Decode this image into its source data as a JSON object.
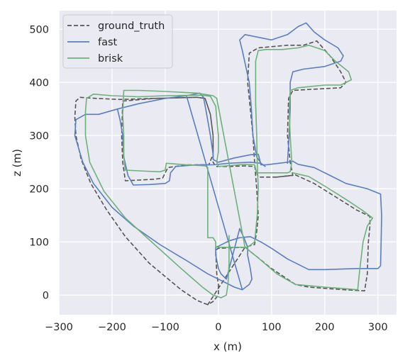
{
  "chart_data": {
    "type": "line",
    "xlabel": "x (m)",
    "ylabel": "z (m)",
    "xlim": [
      -300,
      335
    ],
    "ylim": [
      -37,
      535
    ],
    "xticks": [
      -300,
      -200,
      -100,
      0,
      100,
      200,
      300
    ],
    "yticks": [
      0,
      100,
      200,
      300,
      400,
      500
    ],
    "xtick_labels": [
      "−300",
      "−200",
      "−100",
      "0",
      "100",
      "200",
      "300"
    ],
    "ytick_labels": [
      "0",
      "100",
      "200",
      "300",
      "400",
      "500"
    ],
    "grid": true,
    "legend_position": "top-left",
    "background": "#eaeaf2",
    "series": [
      {
        "name": "ground_truth",
        "color": "#555555",
        "style": "dashed",
        "points": [
          [
            -20,
            -18
          ],
          [
            -40,
            -10
          ],
          [
            -70,
            10
          ],
          [
            -130,
            60
          ],
          [
            -175,
            110
          ],
          [
            -210,
            160
          ],
          [
            -240,
            210
          ],
          [
            -258,
            255
          ],
          [
            -268,
            300
          ],
          [
            -270,
            335
          ],
          [
            -268,
            365
          ],
          [
            -260,
            372
          ],
          [
            -230,
            370
          ],
          [
            -185,
            368
          ],
          [
            -120,
            370
          ],
          [
            -40,
            372
          ],
          [
            -25,
            370
          ],
          [
            -15,
            340
          ],
          [
            -10,
            300
          ],
          [
            -10,
            265
          ],
          [
            -18,
            245
          ],
          [
            -60,
            245
          ],
          [
            -95,
            240
          ],
          [
            -105,
            220
          ],
          [
            -120,
            218
          ],
          [
            -175,
            215
          ],
          [
            -180,
            250
          ],
          [
            -182,
            300
          ],
          [
            -180,
            365
          ],
          [
            -180,
            365
          ],
          [
            -120,
            370
          ],
          [
            -40,
            372
          ],
          [
            -25,
            370
          ],
          [
            -15,
            340
          ],
          [
            -10,
            300
          ],
          [
            -10,
            250
          ],
          [
            -5,
            242
          ],
          [
            20,
            242
          ],
          [
            50,
            243
          ],
          [
            68,
            242
          ],
          [
            75,
            222
          ],
          [
            110,
            222
          ],
          [
            140,
            225
          ],
          [
            135,
            250
          ],
          [
            130,
            300
          ],
          [
            132,
            370
          ],
          [
            140,
            385
          ],
          [
            175,
            387
          ],
          [
            230,
            390
          ],
          [
            240,
            400
          ],
          [
            230,
            420
          ],
          [
            210,
            450
          ],
          [
            185,
            478
          ],
          [
            160,
            470
          ],
          [
            130,
            470
          ],
          [
            75,
            465
          ],
          [
            58,
            455
          ],
          [
            55,
            400
          ],
          [
            60,
            350
          ],
          [
            65,
            300
          ],
          [
            68,
            250
          ],
          [
            72,
            200
          ],
          [
            75,
            150
          ],
          [
            72,
            120
          ],
          [
            68,
            95
          ],
          [
            50,
            90
          ],
          [
            0,
            88
          ],
          [
            -5,
            85
          ],
          [
            -3,
            40
          ],
          [
            0,
            20
          ],
          [
            0,
            0
          ],
          [
            -10,
            -12
          ],
          [
            -20,
            -18
          ],
          [
            50,
            90
          ],
          [
            100,
            50
          ],
          [
            145,
            20
          ],
          [
            170,
            15
          ],
          [
            210,
            12
          ],
          [
            240,
            10
          ],
          [
            275,
            8
          ],
          [
            280,
            40
          ],
          [
            282,
            100
          ],
          [
            285,
            130
          ],
          [
            285,
            148
          ],
          [
            260,
            160
          ],
          [
            220,
            185
          ],
          [
            180,
            210
          ],
          [
            145,
            226
          ],
          [
            110,
            222
          ]
        ]
      },
      {
        "name": "fast",
        "color": "#5b7ec0",
        "style": "solid",
        "points": [
          [
            45,
            10
          ],
          [
            30,
            15
          ],
          [
            10,
            25
          ],
          [
            -20,
            40
          ],
          [
            -60,
            65
          ],
          [
            -110,
            95
          ],
          [
            -160,
            130
          ],
          [
            -200,
            165
          ],
          [
            -235,
            210
          ],
          [
            -255,
            250
          ],
          [
            -270,
            300
          ],
          [
            -268,
            330
          ],
          [
            -250,
            340
          ],
          [
            -225,
            340
          ],
          [
            -190,
            350
          ],
          [
            -150,
            360
          ],
          [
            -100,
            370
          ],
          [
            -60,
            375
          ],
          [
            -35,
            380
          ],
          [
            -28,
            372
          ],
          [
            -22,
            340
          ],
          [
            -15,
            300
          ],
          [
            -10,
            265
          ],
          [
            -10,
            255
          ],
          [
            0,
            250
          ],
          [
            30,
            258
          ],
          [
            60,
            264
          ],
          [
            75,
            265
          ],
          [
            80,
            245
          ],
          [
            90,
            245
          ],
          [
            130,
            250
          ],
          [
            140,
            252
          ],
          [
            150,
            246
          ],
          [
            180,
            240
          ],
          [
            210,
            225
          ],
          [
            240,
            210
          ],
          [
            280,
            200
          ],
          [
            305,
            190
          ],
          [
            307,
            150
          ],
          [
            306,
            100
          ],
          [
            305,
            55
          ],
          [
            300,
            50
          ],
          [
            260,
            50
          ],
          [
            200,
            48
          ],
          [
            170,
            48
          ],
          [
            130,
            68
          ],
          [
            100,
            88
          ],
          [
            80,
            100
          ],
          [
            60,
            110
          ],
          [
            40,
            108
          ],
          [
            20,
            102
          ],
          [
            0,
            92
          ],
          [
            -5,
            90
          ],
          [
            -5,
            75
          ],
          [
            0,
            50
          ],
          [
            5,
            40
          ],
          [
            15,
            30
          ],
          [
            40,
            125
          ],
          [
            48,
            108
          ],
          [
            55,
            90
          ],
          [
            55,
            75
          ],
          [
            60,
            50
          ],
          [
            63,
            30
          ],
          [
            58,
            20
          ],
          [
            45,
            10
          ],
          [
            -60,
            375
          ],
          [
            -100,
            370
          ],
          [
            -150,
            360
          ],
          [
            -190,
            350
          ],
          [
            -185,
            330
          ],
          [
            -180,
            300
          ],
          [
            -178,
            260
          ],
          [
            -170,
            225
          ],
          [
            -160,
            207
          ],
          [
            -130,
            208
          ],
          [
            -100,
            210
          ],
          [
            -92,
            215
          ],
          [
            -90,
            230
          ],
          [
            -80,
            242
          ],
          [
            -40,
            245
          ],
          [
            -20,
            245
          ],
          [
            -10,
            245
          ],
          [
            20,
            248
          ],
          [
            60,
            250
          ],
          [
            80,
            248
          ],
          [
            88,
            242
          ],
          [
            80,
            248
          ],
          [
            72,
            260
          ],
          [
            65,
            300
          ],
          [
            62,
            350
          ],
          [
            58,
            400
          ],
          [
            45,
            460
          ],
          [
            40,
            480
          ],
          [
            50,
            490
          ],
          [
            100,
            480
          ],
          [
            130,
            490
          ],
          [
            150,
            505
          ],
          [
            165,
            512
          ],
          [
            180,
            495
          ],
          [
            200,
            480
          ],
          [
            225,
            465
          ],
          [
            235,
            450
          ],
          [
            230,
            440
          ],
          [
            200,
            430
          ],
          [
            160,
            425
          ],
          [
            140,
            420
          ],
          [
            135,
            400
          ],
          [
            135,
            350
          ],
          [
            133,
            300
          ],
          [
            130,
            250
          ],
          [
            130,
            248
          ]
        ]
      },
      {
        "name": "brisk",
        "color": "#6fb07c",
        "style": "solid",
        "points": [
          [
            20,
            112
          ],
          [
            20,
            60
          ],
          [
            18,
            20
          ],
          [
            15,
            0
          ],
          [
            5,
            -5
          ],
          [
            -10,
            0
          ],
          [
            -30,
            15
          ],
          [
            -70,
            50
          ],
          [
            -120,
            95
          ],
          [
            -175,
            145
          ],
          [
            -215,
            195
          ],
          [
            -242,
            250
          ],
          [
            -250,
            300
          ],
          [
            -250,
            345
          ],
          [
            -248,
            370
          ],
          [
            -235,
            378
          ],
          [
            -200,
            375
          ],
          [
            -150,
            373
          ],
          [
            -100,
            375
          ],
          [
            -30,
            376
          ],
          [
            -15,
            374
          ],
          [
            -5,
            355
          ],
          [
            -2,
            320
          ],
          [
            0,
            300
          ],
          [
            0,
            270
          ],
          [
            -3,
            250
          ],
          [
            0,
            242
          ],
          [
            15,
            243
          ],
          [
            50,
            246
          ],
          [
            68,
            245
          ],
          [
            72,
            230
          ],
          [
            100,
            230
          ],
          [
            130,
            230
          ],
          [
            135,
            232
          ],
          [
            138,
            250
          ],
          [
            135,
            300
          ],
          [
            133,
            350
          ],
          [
            135,
            385
          ],
          [
            150,
            390
          ],
          [
            200,
            395
          ],
          [
            230,
            395
          ],
          [
            250,
            405
          ],
          [
            245,
            420
          ],
          [
            220,
            440
          ],
          [
            200,
            460
          ],
          [
            170,
            470
          ],
          [
            150,
            465
          ],
          [
            120,
            462
          ],
          [
            90,
            462
          ],
          [
            75,
            460
          ],
          [
            70,
            440
          ],
          [
            70,
            400
          ],
          [
            70,
            360
          ],
          [
            72,
            300
          ],
          [
            73,
            250
          ],
          [
            75,
            200
          ],
          [
            73,
            150
          ],
          [
            70,
            120
          ],
          [
            68,
            100
          ],
          [
            55,
            90
          ],
          [
            20,
            90
          ],
          [
            -5,
            90
          ],
          [
            -5,
            100
          ],
          [
            -10,
            108
          ],
          [
            -20,
            108
          ],
          [
            -20,
            150
          ],
          [
            -20,
            200
          ],
          [
            -20,
            240
          ],
          [
            -25,
            243
          ],
          [
            -60,
            245
          ],
          [
            -98,
            248
          ],
          [
            -100,
            235
          ],
          [
            -110,
            232
          ],
          [
            -135,
            233
          ],
          [
            -175,
            235
          ],
          [
            -178,
            260
          ],
          [
            -178,
            300
          ],
          [
            -180,
            340
          ],
          [
            -178,
            385
          ],
          [
            -150,
            385
          ],
          [
            -100,
            383
          ],
          [
            -40,
            380
          ],
          [
            -10,
            375
          ],
          [
            -3,
            370
          ],
          [
            50,
            90
          ],
          [
            75,
            70
          ],
          [
            110,
            40
          ],
          [
            145,
            20
          ],
          [
            200,
            15
          ],
          [
            240,
            12
          ],
          [
            262,
            10
          ],
          [
            265,
            40
          ],
          [
            272,
            100
          ],
          [
            280,
            130
          ],
          [
            290,
            145
          ],
          [
            270,
            160
          ],
          [
            240,
            180
          ],
          [
            200,
            205
          ],
          [
            170,
            223
          ],
          [
            140,
            230
          ]
        ]
      }
    ]
  }
}
